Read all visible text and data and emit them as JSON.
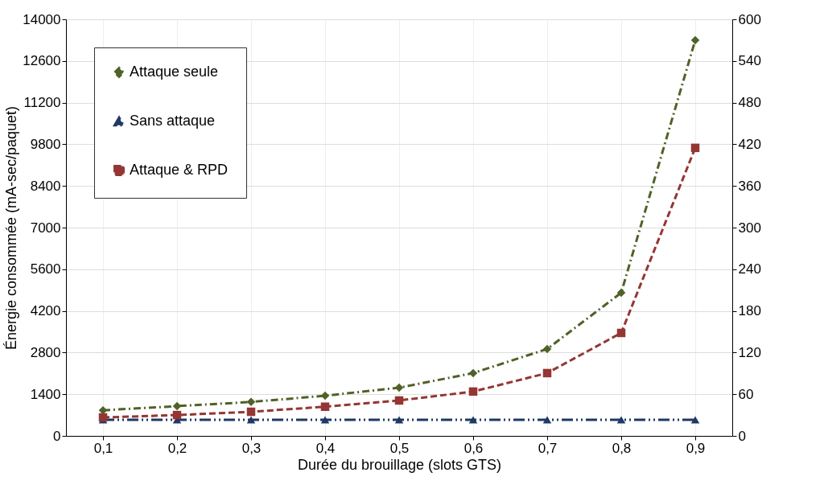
{
  "chart_data": {
    "type": "line",
    "xlabel": "Durée du brouillage (slots GTS)",
    "ylabel": "Énergie consommée (mA-sec/paquet)",
    "x": [
      0.1,
      0.2,
      0.3,
      0.4,
      0.5,
      0.6,
      0.7,
      0.8,
      0.9
    ],
    "series": [
      {
        "name": "Attaque seule",
        "color": "#4f6228",
        "marker": "diamond",
        "line_style": "dashdot",
        "values": [
          860,
          1000,
          1140,
          1350,
          1620,
          2110,
          2920,
          4810,
          13300
        ]
      },
      {
        "name": "Sans attaque",
        "color": "#1f3864",
        "marker": "triangle",
        "line_style": "dashdotdot",
        "values": [
          540,
          540,
          540,
          540,
          540,
          540,
          540,
          540,
          540
        ]
      },
      {
        "name": "Attaque & RPD",
        "color": "#943634",
        "marker": "square",
        "line_style": "dashed",
        "values": [
          620,
          700,
          810,
          980,
          1190,
          1490,
          2110,
          3460,
          9680
        ]
      }
    ],
    "xlim": [
      0.05,
      0.95
    ],
    "xticks": [
      {
        "value": 0.1,
        "label": "0,1"
      },
      {
        "value": 0.2,
        "label": "0,2"
      },
      {
        "value": 0.3,
        "label": "0,3"
      },
      {
        "value": 0.4,
        "label": "0,4"
      },
      {
        "value": 0.5,
        "label": "0,5"
      },
      {
        "value": 0.6,
        "label": "0,6"
      },
      {
        "value": 0.7,
        "label": "0,7"
      },
      {
        "value": 0.8,
        "label": "0,8"
      },
      {
        "value": 0.9,
        "label": "0,9"
      }
    ],
    "ylim": [
      0,
      14000
    ],
    "yticks": [
      0,
      1400,
      2800,
      4200,
      5600,
      7000,
      8400,
      9800,
      11200,
      12600,
      14000
    ],
    "y2lim": [
      0,
      600
    ],
    "y2ticks": [
      0,
      60,
      120,
      180,
      240,
      300,
      360,
      420,
      480,
      540,
      600
    ],
    "grid": true,
    "legend": "top left"
  }
}
